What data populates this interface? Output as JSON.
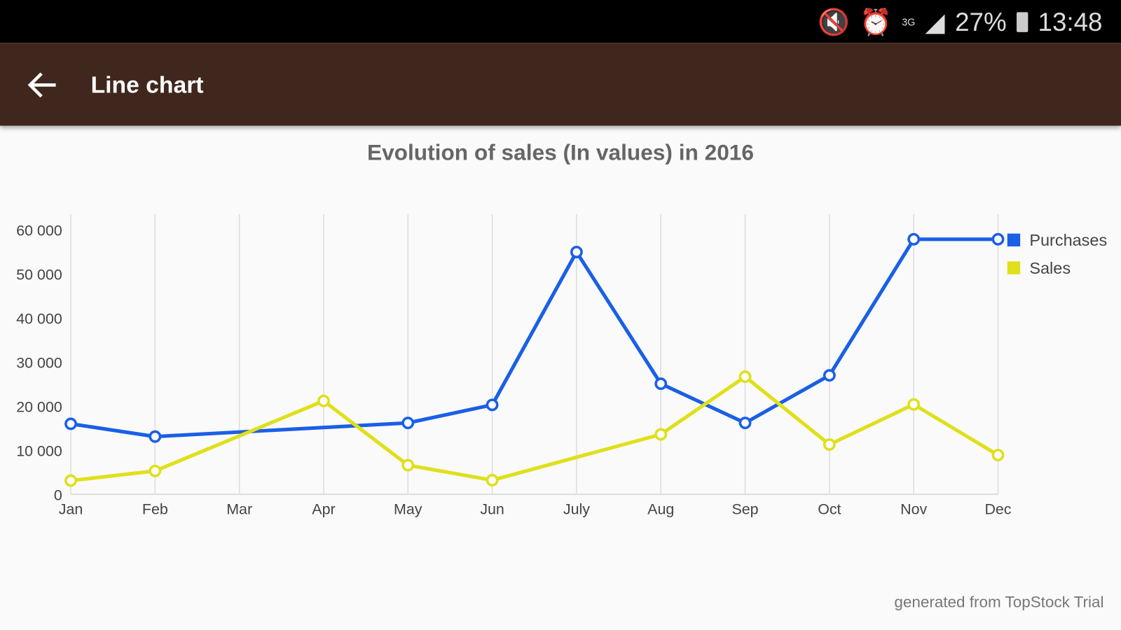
{
  "status_bar": {
    "battery": "27%",
    "time": "13:48",
    "icons": [
      "mute-icon",
      "alarm-icon",
      "3g-icon",
      "signal-icon",
      "battery-icon"
    ]
  },
  "app_bar": {
    "title": "Line chart",
    "back_icon": "arrow-left-icon"
  },
  "footer": "generated from TopStock Trial",
  "chart_data": {
    "type": "line",
    "title": "Evolution of sales (In values) in 2016",
    "xlabel": "",
    "ylabel": "",
    "categories": [
      "Jan",
      "Feb",
      "Mar",
      "Apr",
      "May",
      "Jun",
      "July",
      "Aug",
      "Sep",
      "Oct",
      "Nov",
      "Dec"
    ],
    "ylim": [
      0,
      60000
    ],
    "yticks": [
      0,
      10000,
      20000,
      30000,
      40000,
      50000,
      60000
    ],
    "ytick_labels": [
      "0",
      "10 000",
      "20 000",
      "30 000",
      "40 000",
      "50 000",
      "60 000"
    ],
    "grid": "vertical",
    "legend": "top-right",
    "series": [
      {
        "name": "Purchases",
        "color": "#1a5fe6",
        "values": [
          16000,
          13100,
          null,
          null,
          16200,
          20300,
          55000,
          25100,
          16200,
          27000,
          57900,
          57900
        ]
      },
      {
        "name": "Sales",
        "color": "#dfe01a",
        "values": [
          3100,
          5300,
          null,
          21200,
          6600,
          3200,
          null,
          13600,
          26700,
          11300,
          20400,
          8900
        ]
      }
    ]
  }
}
